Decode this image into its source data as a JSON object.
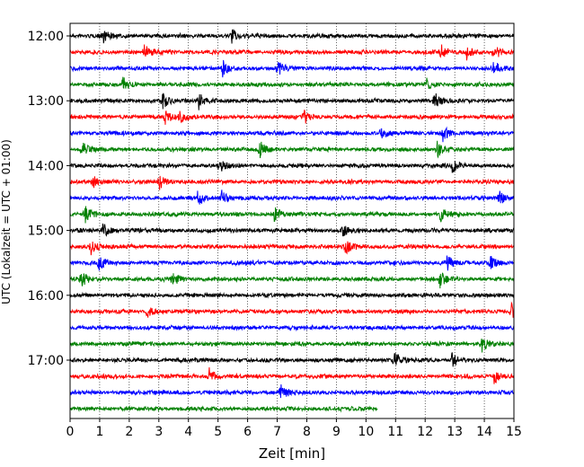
{
  "chart_data": {
    "type": "line",
    "title": "",
    "xlabel": "Zeit  [min]",
    "ylabel": "UTC (Lokalzeit = UTC + 01:00)",
    "xlim": [
      0,
      15
    ],
    "x_ticks": [
      "0",
      "1",
      "2",
      "3",
      "4",
      "5",
      "6",
      "7",
      "8",
      "9",
      "10",
      "11",
      "12",
      "13",
      "14",
      "15"
    ],
    "y_ticks": [
      "12:00",
      "13:00",
      "14:00",
      "15:00",
      "16:00",
      "17:00"
    ],
    "grid": "vertical dotted",
    "row_minutes": 15,
    "rows_per_hour": 4,
    "first_row_time": "12:00",
    "series_colors": [
      "#000000",
      "#ff0000",
      "#0000ff",
      "#008000"
    ],
    "rows": [
      {
        "time": "12:00",
        "end_min": 15,
        "events_min": [
          1.05,
          5.45
        ]
      },
      {
        "time": "12:15",
        "end_min": 15,
        "events_min": [
          2.5,
          12.5,
          13.4,
          14.3
        ]
      },
      {
        "time": "12:30",
        "end_min": 15,
        "events_min": [
          5.15,
          7.0,
          14.3
        ]
      },
      {
        "time": "12:45",
        "end_min": 15,
        "events_min": [
          1.75,
          12.0
        ]
      },
      {
        "time": "13:00",
        "end_min": 15,
        "events_min": [
          3.1,
          4.35,
          12.3
        ]
      },
      {
        "time": "13:15",
        "end_min": 15,
        "events_min": [
          3.2,
          3.7,
          7.9
        ]
      },
      {
        "time": "13:30",
        "end_min": 15,
        "events_min": [
          10.5,
          12.6
        ]
      },
      {
        "time": "13:45",
        "end_min": 15,
        "events_min": [
          0.4,
          6.4,
          12.4
        ]
      },
      {
        "time": "14:00",
        "end_min": 15,
        "events_min": [
          5.05,
          12.9
        ]
      },
      {
        "time": "14:15",
        "end_min": 15,
        "events_min": [
          0.75,
          3.0
        ]
      },
      {
        "time": "14:30",
        "end_min": 15,
        "events_min": [
          4.3,
          5.1,
          14.5
        ]
      },
      {
        "time": "14:45",
        "end_min": 15,
        "events_min": [
          0.5,
          6.9,
          12.5
        ]
      },
      {
        "time": "15:00",
        "end_min": 15,
        "events_min": [
          1.1,
          9.2
        ]
      },
      {
        "time": "15:15",
        "end_min": 15,
        "events_min": [
          0.7,
          9.3
        ]
      },
      {
        "time": "15:30",
        "end_min": 15,
        "events_min": [
          0.95,
          12.7,
          14.2
        ]
      },
      {
        "time": "15:45",
        "end_min": 15,
        "events_min": [
          0.35,
          3.45,
          12.5
        ]
      },
      {
        "time": "16:00",
        "end_min": 15,
        "events_min": []
      },
      {
        "time": "16:15",
        "end_min": 15,
        "events_min": [
          2.6,
          14.9
        ]
      },
      {
        "time": "16:30",
        "end_min": 15,
        "events_min": []
      },
      {
        "time": "16:45",
        "end_min": 15,
        "events_min": [
          13.9
        ]
      },
      {
        "time": "17:00",
        "end_min": 15,
        "events_min": [
          10.95,
          12.9
        ]
      },
      {
        "time": "17:15",
        "end_min": 15,
        "events_min": [
          4.7,
          14.3
        ]
      },
      {
        "time": "17:30",
        "end_min": 15,
        "events_min": [
          7.1
        ]
      },
      {
        "time": "17:45",
        "end_min": 10.4,
        "events_min": []
      }
    ]
  }
}
